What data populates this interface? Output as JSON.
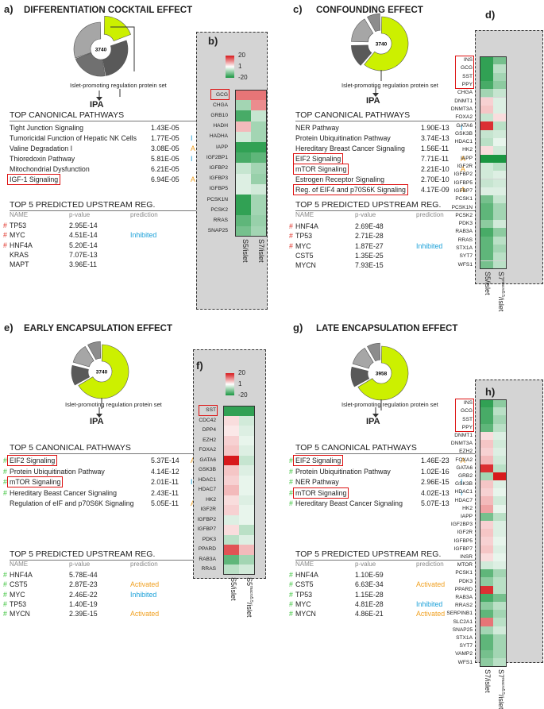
{
  "panels": [
    {
      "id": "a",
      "label": "a)",
      "title": "DIFFERENTIATION COCKTAIL EFFECT",
      "pie_center": "3740",
      "pie_caption": "Islet-promoting regulation protein set",
      "ipa": "IPA",
      "canonical_title": "TOP CANONICAL PATHWAYS",
      "canonical": [
        {
          "name": "Tight Junction Signaling",
          "p": "1.43E-05",
          "pred": "",
          "hl": false,
          "mark": ""
        },
        {
          "name": "Tumoricidal Function of Hepatic NK Cells",
          "p": "1.77E-05",
          "pred": "I",
          "hl": false,
          "mark": ""
        },
        {
          "name": "Valine Degradation I",
          "p": "3.08E-05",
          "pred": "A",
          "hl": false,
          "mark": ""
        },
        {
          "name": "Thioredoxin Pathway",
          "p": "5.81E-05",
          "pred": "I",
          "hl": false,
          "mark": ""
        },
        {
          "name": "Mitochondrial Dysfunction",
          "p": "6.21E-05",
          "pred": "",
          "hl": false,
          "mark": ""
        },
        {
          "name": "IGF-1 Signaling",
          "p": "6.94E-05",
          "pred": "A",
          "hl": true,
          "mark": ""
        }
      ],
      "upstream_title": "TOP 5 PREDICTED UPSTREAM REG.",
      "upstream_headers": {
        "name": "NAME",
        "p": "p-value",
        "pred": "prediction"
      },
      "upstream": [
        {
          "name": "TP53",
          "p": "2.95E-14",
          "pred": "",
          "mark": "#"
        },
        {
          "name": "MYC",
          "p": "4.51E-14",
          "pred": "Inhibited",
          "mark": "#"
        },
        {
          "name": "HNF4A",
          "p": "5.20E-14",
          "pred": "",
          "mark": "#"
        },
        {
          "name": "KRAS",
          "p": "7.07E-13",
          "pred": "",
          "mark": ""
        },
        {
          "name": "MAPT",
          "p": "3.96E-11",
          "pred": "",
          "mark": ""
        }
      ]
    },
    {
      "id": "c",
      "label": "c)",
      "title": "CONFOUNDING EFFECT",
      "pie_center": "3740",
      "pie_caption": "Islet-promoting regulation protein set",
      "ipa": "IPA",
      "canonical_title": "TOP CANONICAL PATHWAYS",
      "canonical": [
        {
          "name": "NER Pathway",
          "p": "1.90E-13",
          "pred": "I",
          "hl": false,
          "mark": ""
        },
        {
          "name": "Protein Ubiquitination Pathway",
          "p": "3.74E-13",
          "pred": "",
          "hl": false,
          "mark": ""
        },
        {
          "name": "Hereditary Breast Cancer Signaling",
          "p": "1.56E-11",
          "pred": "",
          "hl": false,
          "mark": ""
        },
        {
          "name": "EIF2 Signaling",
          "p": "7.71E-11",
          "pred": "A",
          "hl": true,
          "mark": ""
        },
        {
          "name": "mTOR Signaling",
          "p": "2.21E-10",
          "pred": "A",
          "hl": true,
          "mark": ""
        },
        {
          "name": "Estrogen Receptor Signaling",
          "p": "2.70E-10",
          "pred": "",
          "hl": false,
          "mark": ""
        },
        {
          "name": "Reg. of EIF4 and p70S6K Signaling",
          "p": "4.17E-09",
          "pred": "A",
          "hl": true,
          "mark": ""
        }
      ],
      "upstream_title": "TOP 5 PREDICTED UPSTREAM REG.",
      "upstream_headers": {
        "name": "NAME",
        "p": "p-value",
        "pred": "prediction"
      },
      "upstream": [
        {
          "name": "HNF4A",
          "p": "2.69E-48",
          "pred": "",
          "mark": "#"
        },
        {
          "name": "TP53",
          "p": "2.71E-28",
          "pred": "",
          "mark": "#"
        },
        {
          "name": "MYC",
          "p": "1.87E-27",
          "pred": "Inhibited",
          "mark": "#"
        },
        {
          "name": "CST5",
          "p": "1.35E-25",
          "pred": "",
          "mark": ""
        },
        {
          "name": "MYCN",
          "p": "7.93E-15",
          "pred": "",
          "mark": ""
        }
      ]
    },
    {
      "id": "e",
      "label": "e)",
      "title": "EARLY ENCAPSULATION EFFECT",
      "pie_center": "3740",
      "pie_caption": "Islet-promoting regulation protein set",
      "ipa": "IPA",
      "canonical_title": "TOP 5 CANONICAL PATHWAYS",
      "canonical": [
        {
          "name": "EIF2 Signaling",
          "p": "5.37E-14",
          "pred": "A",
          "hl": true,
          "mark": "#"
        },
        {
          "name": "Protein Ubiquitination Pathway",
          "p": "4.14E-12",
          "pred": "",
          "hl": false,
          "mark": "#"
        },
        {
          "name": "mTOR Signaling",
          "p": "2.01E-11",
          "pred": "I",
          "hl": true,
          "mark": "#"
        },
        {
          "name": "Hereditary Beast Cancer Signaling",
          "p": "2.43E-11",
          "pred": "",
          "hl": false,
          "mark": "#"
        },
        {
          "name": "Regulation of eIF and p70S6K Signaling",
          "p": "5.05E-11",
          "pred": "A",
          "hl": false,
          "mark": ""
        }
      ],
      "upstream_title": "TOP 5 PREDICTED UPSTREAM REG.",
      "upstream_headers": {
        "name": "NAME",
        "p": "p-value",
        "pred": "prediction"
      },
      "upstream": [
        {
          "name": "HNF4A",
          "p": "5.78E-44",
          "pred": "",
          "mark": "#"
        },
        {
          "name": "CST5",
          "p": "2.87E-23",
          "pred": "Activated",
          "mark": "#"
        },
        {
          "name": "MYC",
          "p": "2.46E-22",
          "pred": "Inhibited",
          "mark": "#"
        },
        {
          "name": "TP53",
          "p": "1.40E-19",
          "pred": "",
          "mark": "#"
        },
        {
          "name": "MYCN",
          "p": "2.39E-15",
          "pred": "Activated",
          "mark": "#"
        }
      ]
    },
    {
      "id": "g",
      "label": "g)",
      "title": "LATE ENCAPSULATION EFFECT",
      "pie_center": "3958",
      "pie_caption": "Islet-promoting regulation protein set",
      "ipa": "IPA",
      "canonical_title": "TOP 5 CANONICAL PATHWAYS",
      "canonical": [
        {
          "name": "EIF2 Signaling",
          "p": "1.46E-23",
          "pred": "A",
          "hl": true,
          "mark": "#"
        },
        {
          "name": "Protein Ubiquitination Pathway",
          "p": "1.02E-16",
          "pred": "",
          "hl": false,
          "mark": "#"
        },
        {
          "name": "NER Pathway",
          "p": "2.96E-15",
          "pred": "I",
          "hl": false,
          "mark": "#"
        },
        {
          "name": "mTOR Signaling",
          "p": "4.02E-13",
          "pred": "I",
          "hl": true,
          "mark": "#"
        },
        {
          "name": "Hereditary Beast Cancer Signaling",
          "p": "5.07E-13",
          "pred": "",
          "hl": false,
          "mark": "#"
        }
      ],
      "upstream_title": "TOP 5 PREDICTED UPSTREAM REG.",
      "upstream_headers": {
        "name": "NAME",
        "p": "p-value",
        "pred": "prediction"
      },
      "upstream": [
        {
          "name": "HNF4A",
          "p": "1.10E-59",
          "pred": "",
          "mark": "#"
        },
        {
          "name": "CST5",
          "p": "6.63E-34",
          "pred": "Activated",
          "mark": "#"
        },
        {
          "name": "TP53",
          "p": "1.15E-28",
          "pred": "",
          "mark": "#"
        },
        {
          "name": "MYC",
          "p": "4.81E-28",
          "pred": "Inhibited",
          "mark": "#"
        },
        {
          "name": "MYCN",
          "p": "4.86E-21",
          "pred": "Activated",
          "mark": "#"
        }
      ]
    }
  ],
  "heatmaps": [
    {
      "id": "b",
      "label": "b)",
      "legend": [
        "20",
        "1",
        "-20"
      ],
      "columns": [
        {
          "main": "S5/islet",
          "sup": ""
        },
        {
          "main": "S7/islet",
          "sup": ""
        }
      ],
      "boxed": [
        "GCG"
      ],
      "genes": [
        "GCG",
        "CHGA",
        "GRB10",
        "HADH",
        "HADHA",
        "IAPP",
        "IGF2BP1",
        "IGFBP2",
        "IGFBP3",
        "IGFBP5",
        "PCSK1N",
        "PCSK2",
        "RRAS",
        "SNAP25"
      ],
      "values": [
        [
          12,
          12
        ],
        [
          -8,
          10
        ],
        [
          -16,
          -5
        ],
        [
          6,
          -8
        ],
        [
          -4,
          -8
        ],
        [
          -18,
          -18
        ],
        [
          -16,
          -14
        ],
        [
          -5,
          -8
        ],
        [
          -3,
          -9
        ],
        [
          -3,
          -4
        ],
        [
          -18,
          -8
        ],
        [
          -18,
          -8
        ],
        [
          -14,
          -9
        ],
        [
          -12,
          -8
        ]
      ]
    },
    {
      "id": "d",
      "label": "d)",
      "legend": [],
      "columns": [
        {
          "main": "S5/islet",
          "sup": ""
        },
        {
          "main": "S7",
          "sup": "macro5.5",
          "post": "/islet"
        }
      ],
      "boxed": [
        "INS",
        "GCG",
        "SST",
        "PPY"
      ],
      "genes": [
        "INS",
        "GCG",
        "SST",
        "PPY",
        "CHGA",
        "DNMT1",
        "DNMT3A",
        "FOXA2",
        "GATA6",
        "GSK3B",
        "HDAC1",
        "HK2",
        "IAPP",
        "IGF2R",
        "IGFBP2",
        "IGFBP5",
        "IGFBP7",
        "PCSK1",
        "PCSK1N",
        "PCSK2",
        "PDK3",
        "RAB3A",
        "RRAS",
        "STX1A",
        "SYT7",
        "WFS1"
      ],
      "values": [
        [
          -18,
          -12
        ],
        [
          -18,
          -6
        ],
        [
          -18,
          -8
        ],
        [
          -16,
          -10
        ],
        [
          -8,
          -5
        ],
        [
          4,
          -3
        ],
        [
          5,
          -3
        ],
        [
          -5,
          3
        ],
        [
          18,
          -6
        ],
        [
          -5,
          -4
        ],
        [
          -6,
          -2
        ],
        [
          3,
          -4
        ],
        [
          -20,
          -20
        ],
        [
          -4,
          -6
        ],
        [
          -4,
          -3
        ],
        [
          -5,
          -4
        ],
        [
          -3,
          -3
        ],
        [
          -12,
          -5
        ],
        [
          -14,
          -8
        ],
        [
          -14,
          -8
        ],
        [
          -10,
          -4
        ],
        [
          -16,
          -10
        ],
        [
          -14,
          -6
        ],
        [
          -14,
          -8
        ],
        [
          -14,
          -6
        ],
        [
          -12,
          -6
        ]
      ]
    },
    {
      "id": "f",
      "label": "f)",
      "legend": [
        "20",
        "1",
        "-20"
      ],
      "columns": [
        {
          "main": "S5/islet",
          "sup": ""
        },
        {
          "main": "S5",
          "sup": "macro5.5",
          "post": "/islet"
        }
      ],
      "boxed": [
        "SST"
      ],
      "genes": [
        "SST",
        "CDC42",
        "DPP4",
        "EZH2",
        "FOXA2",
        "GATA6",
        "GSK3B",
        "HDAC1",
        "HDAC7",
        "HK2",
        "IGF2R",
        "IGFBP2",
        "IGFBP7",
        "PDK3",
        "PPARD",
        "RAB3A",
        "RRAS"
      ],
      "values": [
        [
          -18,
          -18
        ],
        [
          3,
          -4
        ],
        [
          2,
          -3
        ],
        [
          4,
          -2
        ],
        [
          5,
          -3
        ],
        [
          20,
          -5
        ],
        [
          5,
          -3
        ],
        [
          4,
          -2
        ],
        [
          6,
          -2
        ],
        [
          3,
          -3
        ],
        [
          4,
          -2
        ],
        [
          -3,
          -2
        ],
        [
          3,
          -6
        ],
        [
          -6,
          -3
        ],
        [
          15,
          6
        ],
        [
          -14,
          -8
        ],
        [
          -6,
          -4
        ]
      ]
    },
    {
      "id": "h",
      "label": "h)",
      "legend": [],
      "columns": [
        {
          "main": "S7/islet",
          "sup": ""
        },
        {
          "main": "S7",
          "sup": "macro5.5",
          "post": "/islet"
        }
      ],
      "boxed": [
        "INS",
        "GCG",
        "SST",
        "PPY"
      ],
      "genes": [
        "INS",
        "GCG",
        "SST",
        "PPY",
        "DNMT1",
        "DNMT3A",
        "EZH2",
        "FOXA2",
        "GATA6",
        "GRB2",
        "GSK3B",
        "HDAC1",
        "HDAC7",
        "HK2",
        "IAPP",
        "IGF2BP3",
        "IGF2R",
        "IGFBP5",
        "IGFBP7",
        "INSR",
        "MTOR",
        "PCSK1",
        "PDK3",
        "PPARD",
        "RAB3A",
        "RRAS2",
        "SERPINB1",
        "SLC2A1",
        "SNAP25",
        "STX1A",
        "SYT7",
        "VAMP2",
        "WFS1"
      ],
      "values": [
        [
          -18,
          -10
        ],
        [
          -16,
          -6
        ],
        [
          -16,
          -8
        ],
        [
          -14,
          -6
        ],
        [
          3,
          -3
        ],
        [
          5,
          -4
        ],
        [
          4,
          -3
        ],
        [
          6,
          -4
        ],
        [
          18,
          -6
        ],
        [
          -8,
          20
        ],
        [
          5,
          -3
        ],
        [
          4,
          -2
        ],
        [
          6,
          -4
        ],
        [
          8,
          -2
        ],
        [
          -12,
          -6
        ],
        [
          4,
          -3
        ],
        [
          5,
          -3
        ],
        [
          4,
          -2
        ],
        [
          5,
          -3
        ],
        [
          3,
          -2
        ],
        [
          -4,
          -3
        ],
        [
          -14,
          -8
        ],
        [
          -10,
          -6
        ],
        [
          18,
          -6
        ],
        [
          -16,
          -12
        ],
        [
          -10,
          -6
        ],
        [
          -14,
          -8
        ],
        [
          12,
          -6
        ],
        [
          -8,
          -4
        ],
        [
          -14,
          -8
        ],
        [
          -14,
          -8
        ],
        [
          -12,
          -8
        ],
        [
          -10,
          -6
        ]
      ]
    }
  ],
  "colors": {
    "red": "#d7191c",
    "green": "#1a9641",
    "mid": "#ffffff",
    "activated": "#f0a020",
    "inhibited": "#1aa0d8",
    "pie_yellow": "#ccf000"
  }
}
